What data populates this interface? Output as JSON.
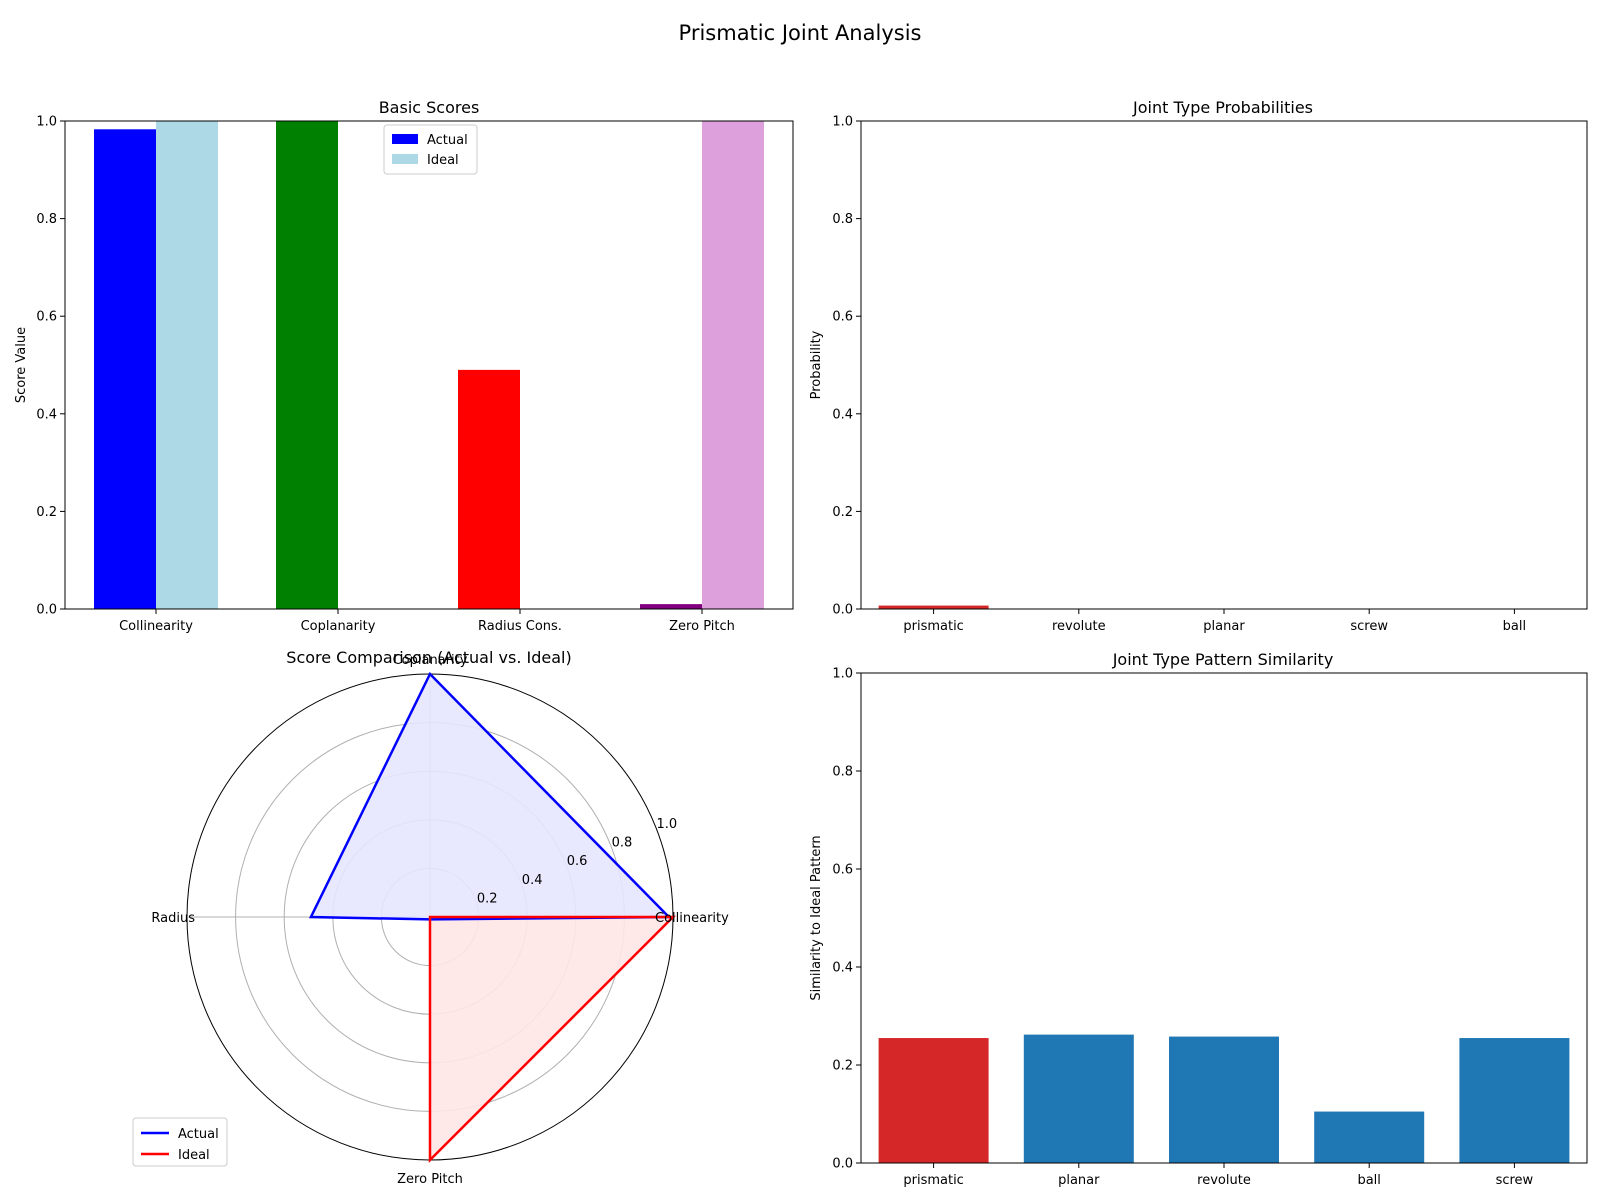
{
  "suptitle": "Prismatic Joint Analysis",
  "chart_data": [
    {
      "type": "bar",
      "title": "Basic Scores",
      "xlabel": "",
      "ylabel": "Score Value",
      "categories": [
        "Collinearity",
        "Coplanarity",
        "Radius Cons.",
        "Zero Pitch"
      ],
      "ylim": [
        0,
        1.0
      ],
      "yticks": [
        "0.0",
        "0.2",
        "0.4",
        "0.6",
        "0.8",
        "1.0"
      ],
      "series": [
        {
          "name": "Actual",
          "values": [
            0.983,
            1.0,
            0.49,
            0.01
          ],
          "colors": [
            "#0000ff",
            "#008000",
            "#ff0000",
            "#800080"
          ]
        },
        {
          "name": "Ideal",
          "values": [
            1.0,
            0.0,
            0.0,
            1.0
          ],
          "colors": [
            "#add8e6",
            "#90ee90",
            "#ffb6c1",
            "#dda0dd"
          ]
        }
      ],
      "legend": {
        "position": "top-center",
        "colors": [
          "#0000ff",
          "#add8e6"
        ]
      },
      "grid": false
    },
    {
      "type": "bar",
      "title": "Joint Type Probabilities",
      "xlabel": "",
      "ylabel": "Probability",
      "categories": [
        "prismatic",
        "revolute",
        "planar",
        "screw",
        "ball"
      ],
      "values": [
        0.007,
        0.0,
        0.0,
        0.0,
        0.0
      ],
      "colors": [
        "#d62728",
        "#1f77b4",
        "#1f77b4",
        "#1f77b4",
        "#1f77b4"
      ],
      "ylim": [
        0,
        1.0
      ],
      "yticks": [
        "0.0",
        "0.2",
        "0.4",
        "0.6",
        "0.8",
        "1.0"
      ],
      "grid": false
    },
    {
      "type": "radar",
      "title": "Score Comparison (Actual vs. Ideal)",
      "axes": [
        "Collinearity",
        "Coplanarity",
        "Radius",
        "Zero Pitch"
      ],
      "rlim": [
        0,
        1.0
      ],
      "rticks": [
        "0.2",
        "0.4",
        "0.6",
        "0.8",
        "1.0"
      ],
      "series": [
        {
          "name": "Actual",
          "values": [
            0.983,
            1.0,
            0.49,
            0.01
          ],
          "color": "#0000ff",
          "fill": "#e5e5ff"
        },
        {
          "name": "Ideal",
          "values": [
            1.0,
            0.0,
            0.0,
            1.0
          ],
          "color": "#ff0000",
          "fill": "#ffe5e5"
        }
      ],
      "legend": {
        "position": "lower-left"
      },
      "grid": true
    },
    {
      "type": "bar",
      "title": "Joint Type Pattern Similarity",
      "xlabel": "",
      "ylabel": "Similarity to Ideal Pattern",
      "categories": [
        "prismatic",
        "planar",
        "revolute",
        "ball",
        "screw"
      ],
      "values": [
        0.255,
        0.262,
        0.258,
        0.105,
        0.255
      ],
      "colors": [
        "#d62728",
        "#1f77b4",
        "#1f77b4",
        "#1f77b4",
        "#1f77b4"
      ],
      "ylim": [
        0,
        1.0
      ],
      "yticks": [
        "0.0",
        "0.2",
        "0.4",
        "0.6",
        "0.8",
        "1.0"
      ],
      "grid": false
    }
  ]
}
